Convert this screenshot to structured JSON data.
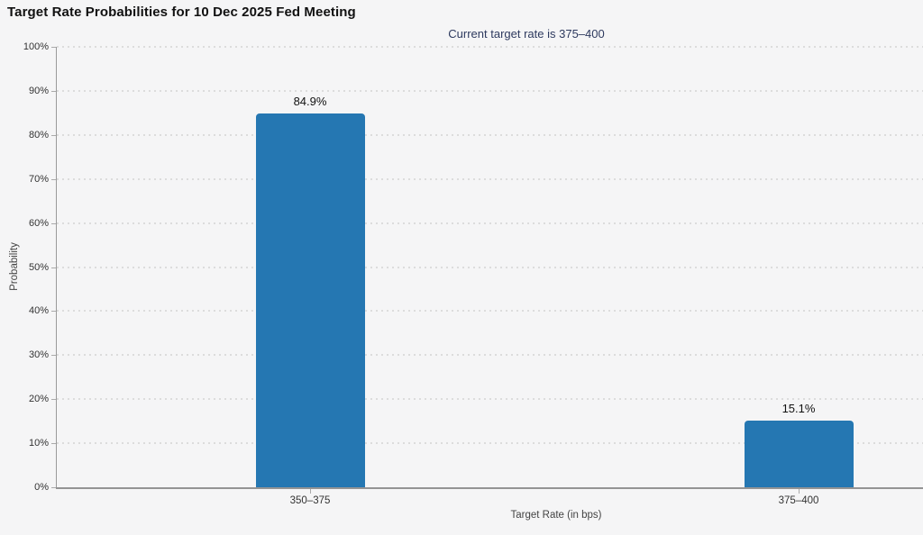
{
  "header": {
    "title": "Target Rate Probabilities for 10 Dec 2025 Fed Meeting",
    "subtitle": "Current target rate is 375–400"
  },
  "chart_data": {
    "type": "bar",
    "title": "Target Rate Probabilities for 10 Dec 2025 Fed Meeting",
    "subtitle": "Current target rate is 375–400",
    "categories": [
      "350–375",
      "375–400"
    ],
    "values": [
      84.9,
      15.1
    ],
    "value_labels": [
      "84.9%",
      "15.1%"
    ],
    "xlabel": "Target Rate (in bps)",
    "ylabel": "Probability",
    "ylim": [
      0,
      100
    ],
    "ytick_step": 10,
    "ytick_suffix": "%",
    "ytick_labels": [
      "0%",
      "10%",
      "20%",
      "30%",
      "40%",
      "50%",
      "60%",
      "70%",
      "80%",
      "90%",
      "100%"
    ],
    "grid": "horizontal-dotted",
    "legend": "none",
    "colors": {
      "bar": "#2577b2",
      "background": "#f5f5f6",
      "gridline": "#dcdcdc",
      "axis": "#9a9a9a",
      "title": "#111111",
      "subtitle": "#2e3a5f",
      "tick_label": "#333333",
      "axis_title": "#444444"
    }
  }
}
